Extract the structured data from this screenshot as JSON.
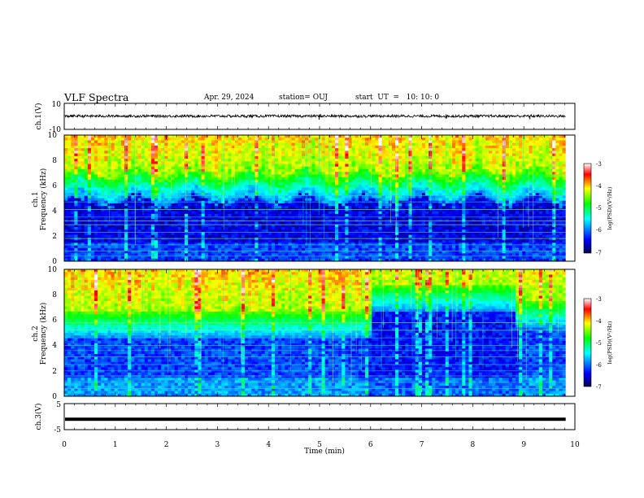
{
  "header": {
    "title": "VLF Spectra",
    "date": "Apr. 29, 2024",
    "station": "station= OUJ",
    "start": "start  UT  =   10: 10: 0"
  },
  "chart_data": [
    {
      "type": "line",
      "panel": "ch1-waveform",
      "ylabel": "ch.1(V)",
      "ylim": [
        -10,
        10
      ],
      "yticks": [
        10,
        -10
      ],
      "xlim": [
        0,
        10
      ],
      "series": [
        {
          "values_summary": {
            "baseline": 0.2,
            "noise_amplitude": 1.0,
            "spikes": [
              {
                "x": 4.99,
                "y": -2.5
              },
              {
                "x": 5.02,
                "y": 1.8
              },
              {
                "x": 7.48,
                "y": -1.8
              },
              {
                "x": 9.12,
                "y": -2.2
              },
              {
                "x": 9.15,
                "y": 1.5
              }
            ]
          }
        }
      ]
    },
    {
      "type": "heatmap",
      "panel": "ch1-spectrogram",
      "ylabel": "ch.1\nFrequency  (kHz)",
      "ylim": [
        0,
        10
      ],
      "yticks": [
        0,
        2,
        4,
        6,
        8,
        10
      ],
      "xlim": [
        0,
        9.82
      ],
      "colorbar": {
        "label": "log(PSD)(V²/Hz)",
        "range": [
          -7,
          -3
        ],
        "ticks": [
          "-3",
          "-4",
          "-5",
          "-6",
          "-7"
        ]
      },
      "profile": {
        "quiet_band_top_khz": 5.0,
        "bright_band_top_khz": 10,
        "lines_khz": [
          0.4,
          0.8,
          1.3,
          1.8,
          2.3,
          2.9,
          3.2,
          3.5,
          4.1,
          4.7,
          5.2
        ]
      }
    },
    {
      "type": "heatmap",
      "panel": "ch2-spectrogram",
      "ylabel": "ch.2\nFrequency  (kHz)",
      "ylim": [
        0,
        10
      ],
      "yticks": [
        0,
        2,
        4,
        6,
        8,
        10
      ],
      "xlim": [
        0,
        9.82
      ],
      "colorbar": {
        "label": "log(PSD)(V²/Hz)",
        "range": [
          -7,
          -3
        ],
        "ticks": [
          "-3",
          "-4",
          "-5",
          "-6",
          "-7"
        ]
      },
      "profile": {
        "quiet_band_top_khz": 4.5,
        "bright_band_top_khz": 10,
        "lines_khz": [
          0.6,
          1.1,
          1.6,
          2.0,
          2.5,
          3.1,
          3.6,
          4.0,
          4.6,
          5.2,
          5.8
        ]
      }
    },
    {
      "type": "line",
      "panel": "ch3-waveform",
      "ylabel": "ch.3(V)",
      "ylim": [
        -5,
        5
      ],
      "yticks": [
        5,
        0,
        -5
      ],
      "xlim": [
        0,
        10
      ],
      "series": [
        {
          "values_summary": {
            "baseline": -1.0,
            "noise_amplitude": 0.15
          }
        }
      ]
    }
  ],
  "x_axis": {
    "label": "Time  (min)",
    "ticks": [
      "0",
      "1",
      "2",
      "3",
      "4",
      "5",
      "6",
      "7",
      "8",
      "9",
      "10"
    ]
  },
  "colors": {
    "colormap": [
      "#000064",
      "#0000ff",
      "#00ffff",
      "#00ff00",
      "#ffff00",
      "#ff0000",
      "#ffffff"
    ],
    "trace": "#000000"
  }
}
